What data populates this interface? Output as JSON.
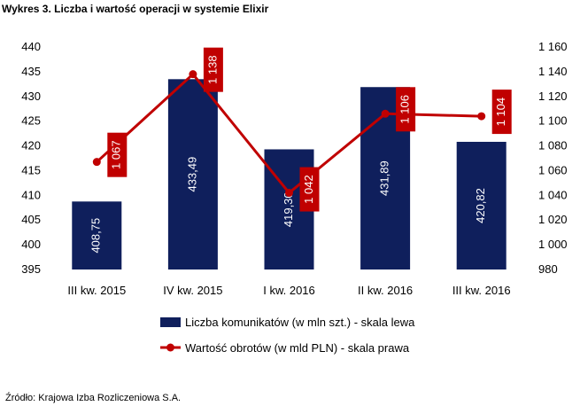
{
  "title": "Wykres 3. Liczba i wartość operacji w systemie Elixir",
  "source": "Źródło: Krajowa Izba Rozliczeniowa S.A.",
  "chart_data": {
    "type": "bar+line",
    "categories": [
      "III kw. 2015",
      "IV kw. 2015",
      "I kw. 2016",
      "II kw. 2016",
      "III kw. 2016"
    ],
    "series": [
      {
        "name": "Liczba komunikatów (w mln szt.) - skala lewa",
        "type": "bar",
        "axis": "left",
        "values": [
          408.75,
          433.49,
          419.3,
          431.89,
          420.82
        ],
        "labels": [
          "408,75",
          "433,49",
          "419,30",
          "431,89",
          "420,82"
        ],
        "color": "#0f1f5c"
      },
      {
        "name": "Wartość obrotów (w mld PLN) - skala prawa",
        "type": "line",
        "axis": "right",
        "values": [
          1067,
          1138,
          1042,
          1106,
          1104
        ],
        "labels": [
          "1 067",
          "1 138",
          "1 042",
          "1 106",
          "1 104"
        ],
        "color": "#c00000"
      }
    ],
    "left_axis": {
      "min": 395,
      "max": 440,
      "step": 5,
      "ticks": [
        "395",
        "400",
        "405",
        "410",
        "415",
        "420",
        "425",
        "430",
        "435",
        "440"
      ]
    },
    "right_axis": {
      "min": 980,
      "max": 1160,
      "step": 20,
      "ticks": [
        "980",
        "1 000",
        "1 020",
        "1 040",
        "1 060",
        "1 080",
        "1 100",
        "1 120",
        "1 140",
        "1 160"
      ]
    },
    "legend_position": "bottom"
  }
}
